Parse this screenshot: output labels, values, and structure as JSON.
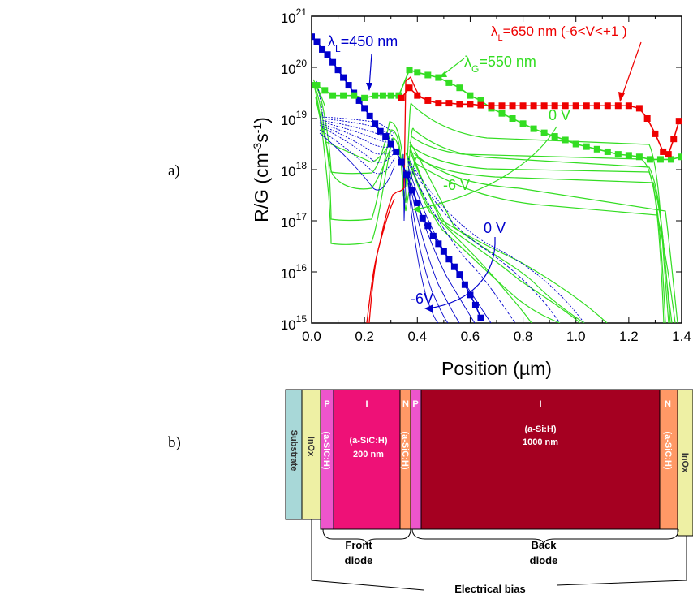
{
  "panel_labels": {
    "a": "a)",
    "b": "b)"
  },
  "chart_data": {
    "type": "line",
    "xlabel": "Position (µm)",
    "ylabel": "R/G (cm⁻³s⁻¹)",
    "xlim": [
      0.0,
      1.4
    ],
    "y_scale": "log",
    "ylim": [
      1000000000000000.0,
      1e+21
    ],
    "x_ticks": [
      "0.0",
      "0.2",
      "0.4",
      "0.6",
      "0.8",
      "1.0",
      "1.2",
      "1.4"
    ],
    "y_ticks": [
      {
        "base": "10",
        "exp": "15"
      },
      {
        "base": "10",
        "exp": "16"
      },
      {
        "base": "10",
        "exp": "17"
      },
      {
        "base": "10",
        "exp": "18"
      },
      {
        "base": "10",
        "exp": "19"
      },
      {
        "base": "10",
        "exp": "20"
      },
      {
        "base": "10",
        "exp": "21"
      }
    ],
    "annotations": {
      "blue_label": "λL=450 nm",
      "green_label": "λG=550 nm",
      "red_label": "λL=650 nm (-6<V<+1 )",
      "green_0v": "0 V",
      "green_m6v": "-6 V",
      "blue_0v": "0 V",
      "blue_m6v": "-6V"
    },
    "colors": {
      "blue": "#0000cc",
      "green": "#33dd22",
      "red": "#ee0000"
    },
    "series": [
      {
        "color": "blue",
        "marker": "square",
        "x": [
          0.0,
          0.02,
          0.04,
          0.06,
          0.08,
          0.1,
          0.12,
          0.14,
          0.16,
          0.18,
          0.2,
          0.22,
          0.24,
          0.26,
          0.28,
          0.3,
          0.32,
          0.34,
          0.36,
          0.38,
          0.4,
          0.42,
          0.44,
          0.46,
          0.48,
          0.5,
          0.52,
          0.54,
          0.56,
          0.58,
          0.6,
          0.62,
          0.64
        ],
        "y": [
          20.6,
          20.5,
          20.35,
          20.25,
          20.1,
          19.95,
          19.8,
          19.65,
          19.5,
          19.35,
          19.2,
          19.05,
          18.9,
          18.75,
          18.65,
          18.5,
          18.35,
          18.15,
          17.9,
          17.6,
          17.35,
          17.05,
          16.9,
          16.7,
          16.55,
          16.4,
          16.25,
          16.1,
          15.95,
          15.75,
          15.55,
          15.35,
          15.1
        ]
      },
      {
        "color": "green",
        "marker": "square",
        "x": [
          0.0,
          0.02,
          0.05,
          0.08,
          0.12,
          0.16,
          0.2,
          0.24,
          0.27,
          0.3,
          0.33,
          0.37,
          0.4,
          0.44,
          0.48,
          0.52,
          0.56,
          0.6,
          0.64,
          0.68,
          0.72,
          0.76,
          0.8,
          0.84,
          0.88,
          0.92,
          0.96,
          1.0,
          1.04,
          1.08,
          1.12,
          1.16,
          1.2,
          1.24,
          1.28,
          1.32,
          1.36,
          1.4
        ],
        "y": [
          19.65,
          19.65,
          19.55,
          19.45,
          19.45,
          19.45,
          19.4,
          19.45,
          19.45,
          19.45,
          19.45,
          19.95,
          19.9,
          19.85,
          19.8,
          19.7,
          19.6,
          19.45,
          19.35,
          19.2,
          19.1,
          19.0,
          18.9,
          18.8,
          18.72,
          18.65,
          18.58,
          18.5,
          18.45,
          18.4,
          18.35,
          18.3,
          18.28,
          18.25,
          18.2,
          18.2,
          18.2,
          18.25
        ]
      },
      {
        "color": "red",
        "marker": "square",
        "x": [
          0.34,
          0.37,
          0.4,
          0.44,
          0.48,
          0.52,
          0.56,
          0.6,
          0.64,
          0.68,
          0.72,
          0.76,
          0.8,
          0.84,
          0.88,
          0.92,
          0.96,
          1.0,
          1.04,
          1.08,
          1.12,
          1.16,
          1.2,
          1.24,
          1.27,
          1.3,
          1.33,
          1.35,
          1.37,
          1.39
        ],
        "y": [
          19.4,
          19.6,
          19.45,
          19.35,
          19.3,
          19.3,
          19.28,
          19.28,
          19.26,
          19.25,
          19.25,
          19.25,
          19.25,
          19.25,
          19.25,
          19.25,
          19.25,
          19.25,
          19.25,
          19.25,
          19.25,
          19.25,
          19.25,
          19.2,
          19.0,
          18.7,
          18.35,
          18.3,
          18.6,
          18.95
        ]
      }
    ]
  },
  "device": {
    "layers": [
      {
        "key": "substrate",
        "color": "#a8d8d8",
        "vertical": "Substrate"
      },
      {
        "key": "inox_front",
        "color": "#eef0a4",
        "vertical": "InOx"
      },
      {
        "key": "p_front",
        "color": "#ee55cc",
        "top": "P",
        "vertical": "(a-SiC:H)"
      },
      {
        "key": "i_front",
        "color": "#ee1177",
        "top": "I",
        "mat": "(a-SiC:H)",
        "thick": "200 nm"
      },
      {
        "key": "n_front",
        "color": "#ff9966",
        "top": "N",
        "vertical": "(a-SiC:H)"
      },
      {
        "key": "p_back",
        "color": "#ee55cc",
        "top": "P"
      },
      {
        "key": "i_back",
        "color": "#a50021",
        "top": "I",
        "mat": "(a-Si:H)",
        "thick": "1000 nm"
      },
      {
        "key": "n_back",
        "color": "#ff9966",
        "top": "N",
        "vertical": "(a-SiC:H)"
      },
      {
        "key": "inox_back",
        "color": "#eef0a4",
        "vertical": "InOx"
      }
    ],
    "front_diode": [
      "Front",
      "diode"
    ],
    "back_diode": [
      "Back",
      "diode"
    ],
    "bias": "Electrical bias"
  }
}
